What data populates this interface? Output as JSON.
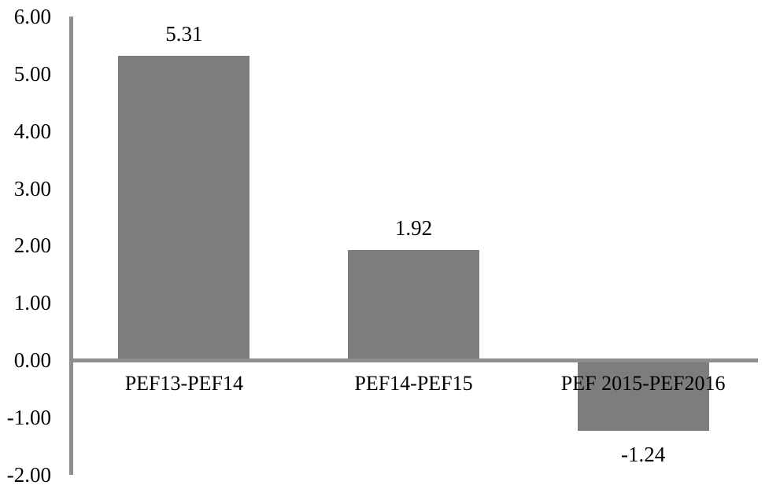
{
  "chart_data": {
    "type": "bar",
    "categories": [
      "PEF13-PEF14",
      "PEF14-PEF15",
      "PEF 2015-PEF2016"
    ],
    "values": [
      5.31,
      1.92,
      -1.24
    ],
    "data_labels": [
      "5.31",
      "1.92",
      "-1.24"
    ],
    "series_name": "",
    "title": "",
    "xlabel": "",
    "ylabel": "",
    "ylim": [
      -2,
      6
    ],
    "yticks": [
      {
        "value": 6,
        "label": "6.00"
      },
      {
        "value": 5,
        "label": "5.00"
      },
      {
        "value": 4,
        "label": "4.00"
      },
      {
        "value": 3,
        "label": "3.00"
      },
      {
        "value": 2,
        "label": "2.00"
      },
      {
        "value": 1,
        "label": "1.00"
      },
      {
        "value": 0,
        "label": "0.00"
      },
      {
        "value": -1,
        "label": "-1.00"
      },
      {
        "value": -2,
        "label": "-2.00"
      }
    ],
    "grid": false,
    "legend_position": "none",
    "bar_color": "#7d7d7d",
    "axis_color": "#8e8e8e",
    "text_color": "#000000",
    "background_color": "#ffffff"
  }
}
